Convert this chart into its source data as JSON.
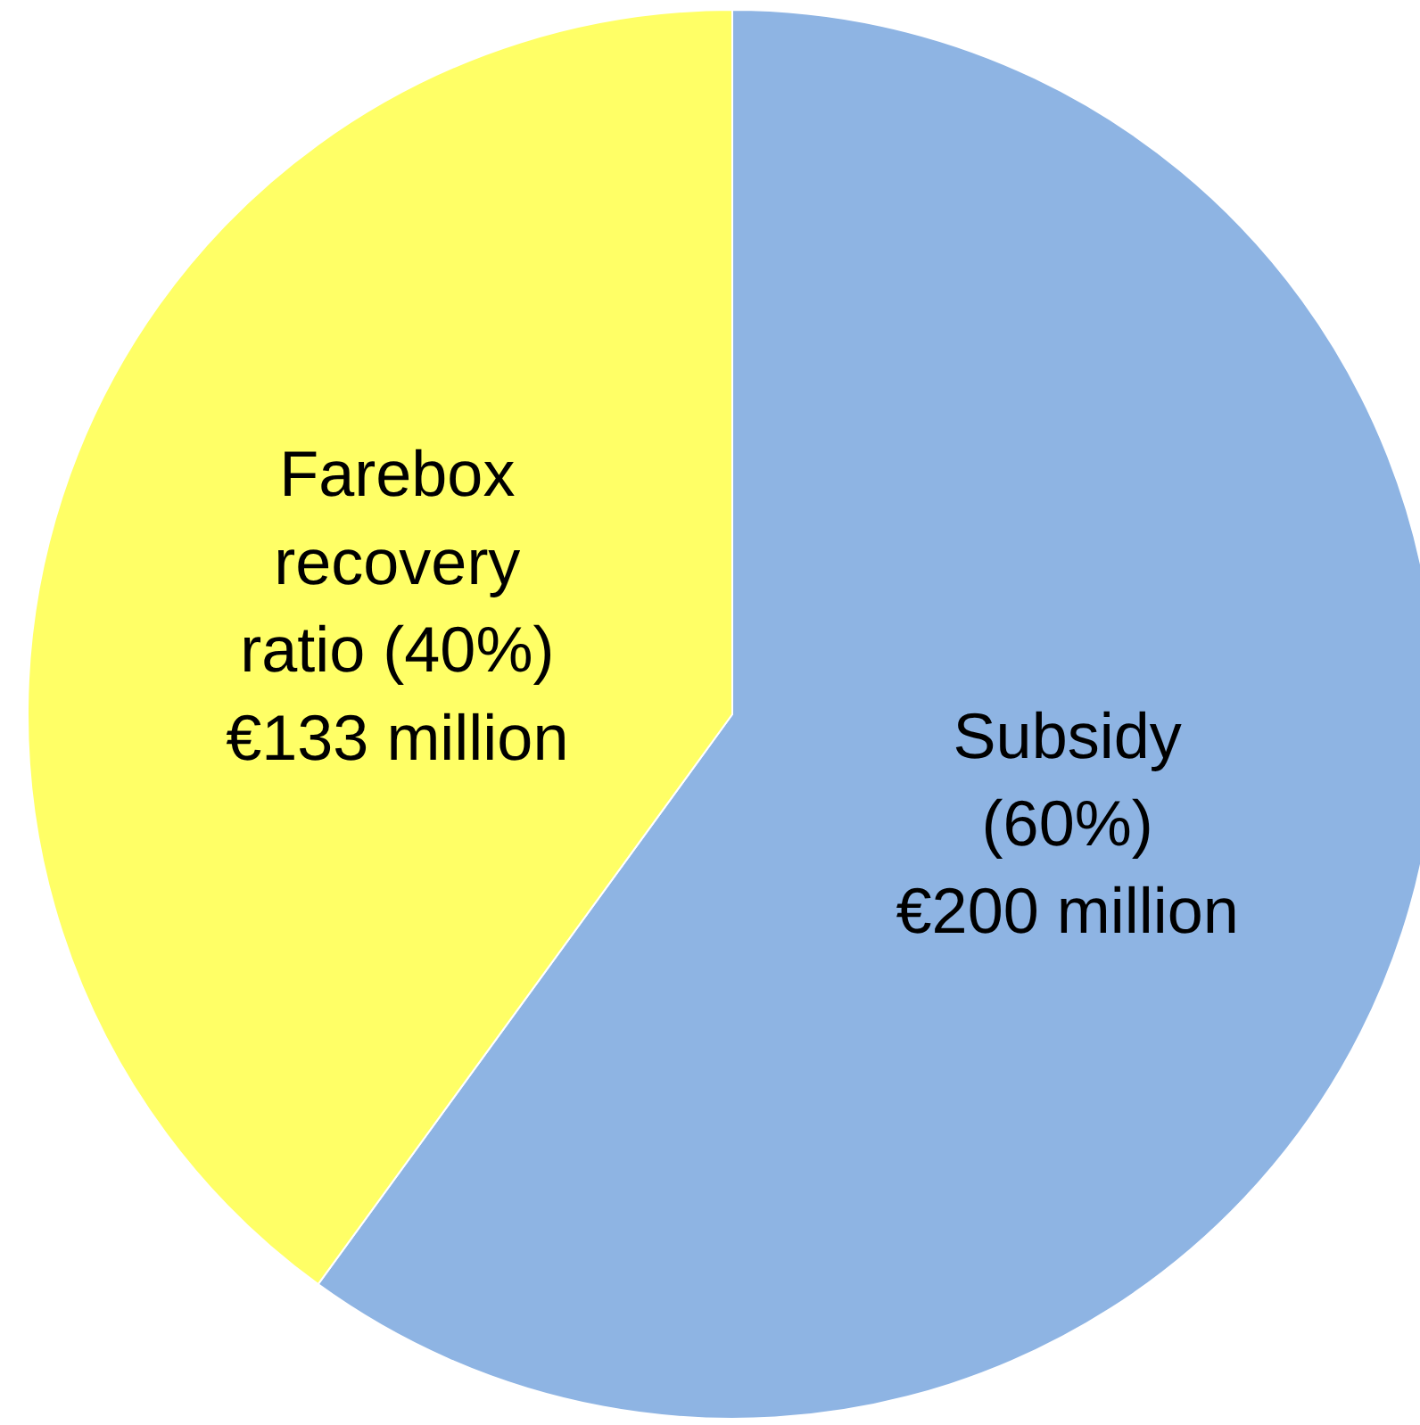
{
  "chart_data": {
    "type": "pie",
    "categories": [
      "Subsidy\n(60%)\n€200 million",
      "Farebox\nrecovery\nratio (40%)\n€133 million"
    ],
    "values": [
      60,
      40
    ],
    "colors": [
      "#8eb4e3",
      "#ffff66"
    ],
    "legend": false
  }
}
